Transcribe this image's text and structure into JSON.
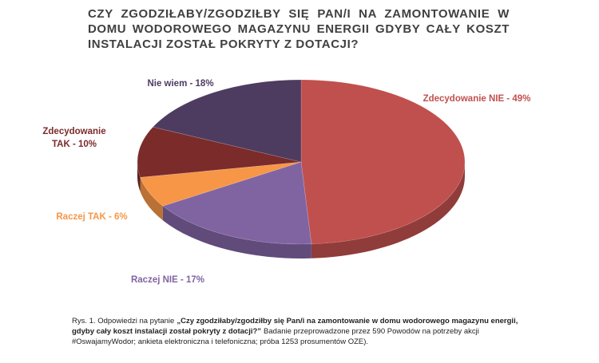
{
  "chart_data": {
    "type": "pie3d",
    "title": "CZY ZGODZIŁABY/ZGODZIŁBY SIĘ PAN/I NA ZAMONTOWANIE W DOMU WODOROWEGO MAGAZYNU ENERGII GDYBY CAŁY KOSZT INSTALACJI ZOSTAŁ POKRYTY Z DOTACJI?",
    "categories": [
      "Zdecydowanie NIE - 49%",
      "Raczej NIE - 17%",
      "Raczej TAK - 6%",
      "Zdecydowanie TAK - 10%",
      "Nie wiem - 18%"
    ],
    "values": [
      49,
      17,
      6,
      10,
      18
    ],
    "colors": [
      "#c0504d",
      "#8064a2",
      "#f79646",
      "#7a2b2a",
      "#4e3b60"
    ],
    "caption": [
      "Rys. 1. Odpowiedzi na pytanie",
      "„Czy zgodziłaby/zgodziłby się Pan/i na zamontowanie w domu wodorowego magazynu energii, gdyby cały koszt instalacji został pokryty z dotacji?”",
      "Badanie przeprowadzone przez 590 Powodów na potrzeby akcji #OswajamyWodor; ankieta elektroniczna i telefoniczna; próba 1253 prosumentów OZE)."
    ]
  }
}
